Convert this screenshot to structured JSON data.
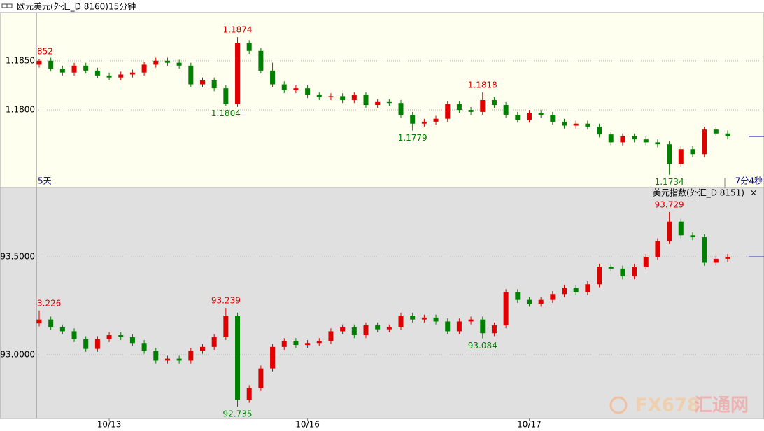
{
  "chart_data": [
    {
      "type": "candlestick",
      "title": "欧元美元(外汇_D 8160)15分钟",
      "series": {
        "open": [
          1.1846,
          1.185,
          1.1842,
          1.1838,
          1.1845,
          1.184,
          1.1835,
          1.1833,
          1.1836,
          1.1838,
          1.1846,
          1.185,
          1.1848,
          1.1845,
          1.1826,
          1.183,
          1.1822,
          1.1806,
          1.1868,
          1.186,
          1.184,
          1.1826,
          1.182,
          1.1822,
          1.1815,
          1.1813,
          1.1814,
          1.181,
          1.1815,
          1.1805,
          1.1808,
          1.1807,
          1.1795,
          1.1786,
          1.1788,
          1.1791,
          1.1806,
          1.18,
          1.1798,
          1.181,
          1.1805,
          1.1795,
          1.179,
          1.1797,
          1.1795,
          1.1788,
          1.1784,
          1.1786,
          1.1783,
          1.1775,
          1.1767,
          1.1773,
          1.177,
          1.1767,
          1.1765,
          1.1745,
          1.176,
          1.1755,
          1.178,
          1.1776
        ],
        "high": [
          1.1852,
          1.1853,
          1.1845,
          1.1848,
          1.1848,
          1.1843,
          1.1838,
          1.1839,
          1.1841,
          1.1849,
          1.1853,
          1.1853,
          1.1851,
          1.1848,
          1.1833,
          1.1833,
          1.1825,
          1.1874,
          1.1871,
          1.1863,
          1.1848,
          1.1829,
          1.1825,
          1.1825,
          1.1818,
          1.1817,
          1.1817,
          1.1818,
          1.1818,
          1.1811,
          1.1811,
          1.181,
          1.1798,
          1.1791,
          1.1794,
          1.1809,
          1.1809,
          1.1803,
          1.1818,
          1.1813,
          1.1808,
          1.1798,
          1.18,
          1.18,
          1.1798,
          1.1791,
          1.1789,
          1.1789,
          1.1786,
          1.1778,
          1.1776,
          1.1776,
          1.1773,
          1.177,
          1.1768,
          1.1763,
          1.1763,
          1.1783,
          1.1783,
          1.1779
        ],
        "low": [
          1.1843,
          1.1839,
          1.1835,
          1.1835,
          1.1837,
          1.1832,
          1.183,
          1.183,
          1.1833,
          1.1835,
          1.1843,
          1.1845,
          1.1842,
          1.1823,
          1.1823,
          1.1819,
          1.1804,
          1.1803,
          1.1857,
          1.1837,
          1.1823,
          1.1817,
          1.1817,
          1.1812,
          1.181,
          1.181,
          1.1807,
          1.1807,
          1.1802,
          1.1802,
          1.1804,
          1.1792,
          1.1779,
          1.1783,
          1.1785,
          1.1788,
          1.1797,
          1.1795,
          1.1795,
          1.1802,
          1.1792,
          1.1787,
          1.1787,
          1.1792,
          1.1785,
          1.1781,
          1.1781,
          1.178,
          1.1772,
          1.1764,
          1.1764,
          1.1767,
          1.1764,
          1.1762,
          1.1734,
          1.1742,
          1.1752,
          1.1752,
          1.1773,
          1.177
        ],
        "close": [
          1.185,
          1.1842,
          1.1838,
          1.1845,
          1.184,
          1.1835,
          1.1833,
          1.1836,
          1.1838,
          1.1846,
          1.185,
          1.1848,
          1.1845,
          1.1826,
          1.183,
          1.1822,
          1.1806,
          1.1868,
          1.186,
          1.184,
          1.1826,
          1.182,
          1.1822,
          1.1815,
          1.1813,
          1.1814,
          1.181,
          1.1815,
          1.1805,
          1.1808,
          1.1807,
          1.1795,
          1.1786,
          1.1788,
          1.1791,
          1.1806,
          1.18,
          1.1798,
          1.181,
          1.1805,
          1.1795,
          1.179,
          1.1797,
          1.1795,
          1.1788,
          1.1784,
          1.1786,
          1.1783,
          1.1775,
          1.1767,
          1.1773,
          1.177,
          1.1767,
          1.1765,
          1.1745,
          1.176,
          1.1755,
          1.178,
          1.1776,
          1.1773
        ]
      },
      "up_color": "#e00000",
      "down_color": "#008000",
      "background": "#ffffef",
      "ylim": [
        1.1721,
        1.1899
      ],
      "yticks": [
        {
          "value": 1.18,
          "label": "1.1800"
        },
        {
          "value": 1.185,
          "label": "1.1850"
        }
      ],
      "grid": true,
      "annotations": [
        {
          "text": "852",
          "index": 0,
          "side": "high"
        },
        {
          "text": "1.1874",
          "index": 17,
          "side": "high"
        },
        {
          "text": "1.1804",
          "index": 16,
          "side": "low"
        },
        {
          "text": "1.1779",
          "index": 32,
          "side": "low"
        },
        {
          "text": "1.1818",
          "index": 38,
          "side": "high"
        },
        {
          "text": "1.1734",
          "index": 54,
          "side": "low"
        }
      ],
      "period_label": "5天",
      "countdown": "7分4秒"
    },
    {
      "type": "candlestick",
      "title": "美元指数(外汇_D 8151)",
      "categories": [
        null,
        null,
        null,
        null,
        null,
        null,
        "10/13",
        null,
        null,
        null,
        null,
        null,
        null,
        null,
        null,
        null,
        null,
        null,
        null,
        null,
        null,
        null,
        null,
        "10/16",
        null,
        null,
        null,
        null,
        null,
        null,
        null,
        null,
        null,
        null,
        null,
        null,
        null,
        null,
        null,
        null,
        null,
        null,
        "10/17",
        null,
        null,
        null,
        null,
        null,
        null,
        null,
        null,
        null,
        null,
        null,
        null,
        null,
        null,
        null,
        null,
        null
      ],
      "series": {
        "open": [
          93.16,
          93.18,
          93.14,
          93.12,
          93.08,
          93.03,
          93.08,
          93.1,
          93.09,
          93.06,
          93.02,
          92.97,
          92.98,
          92.97,
          93.02,
          93.04,
          93.09,
          93.2,
          92.77,
          92.83,
          92.93,
          93.04,
          93.07,
          93.05,
          93.06,
          93.07,
          93.12,
          93.14,
          93.1,
          93.15,
          93.13,
          93.14,
          93.2,
          93.18,
          93.19,
          93.17,
          93.12,
          93.17,
          93.18,
          93.11,
          93.15,
          93.32,
          93.28,
          93.26,
          93.28,
          93.31,
          93.34,
          93.32,
          93.36,
          93.45,
          93.44,
          93.4,
          93.45,
          93.5,
          93.58,
          93.68,
          93.61,
          93.6,
          93.47,
          93.49
        ],
        "high": [
          93.226,
          93.195,
          93.155,
          93.135,
          93.095,
          93.095,
          93.115,
          93.115,
          93.105,
          93.075,
          93.035,
          92.995,
          92.995,
          93.035,
          93.055,
          93.105,
          93.239,
          93.215,
          92.845,
          92.945,
          93.055,
          93.085,
          93.085,
          93.075,
          93.085,
          93.135,
          93.155,
          93.155,
          93.165,
          93.165,
          93.155,
          93.215,
          93.215,
          93.205,
          93.205,
          93.185,
          93.185,
          93.195,
          93.195,
          93.165,
          93.335,
          93.335,
          93.295,
          93.295,
          93.325,
          93.355,
          93.355,
          93.375,
          93.465,
          93.465,
          93.455,
          93.465,
          93.515,
          93.595,
          93.729,
          93.695,
          93.625,
          93.615,
          93.505,
          93.515
        ],
        "low": [
          93.145,
          93.125,
          93.105,
          93.065,
          93.015,
          93.015,
          93.065,
          93.075,
          93.045,
          93.005,
          92.955,
          92.955,
          92.955,
          92.955,
          93.005,
          93.025,
          93.075,
          92.735,
          92.755,
          92.815,
          92.915,
          93.025,
          93.035,
          93.035,
          93.045,
          93.055,
          93.105,
          93.085,
          93.085,
          93.115,
          93.115,
          93.125,
          93.165,
          93.165,
          93.155,
          93.105,
          93.105,
          93.155,
          93.084,
          93.095,
          93.135,
          93.265,
          93.245,
          93.245,
          93.265,
          93.295,
          93.305,
          93.305,
          93.345,
          93.425,
          93.385,
          93.385,
          93.435,
          93.485,
          93.565,
          93.595,
          93.585,
          93.455,
          93.455,
          93.475
        ],
        "close": [
          93.18,
          93.14,
          93.12,
          93.08,
          93.03,
          93.08,
          93.1,
          93.09,
          93.06,
          93.02,
          92.97,
          92.98,
          92.97,
          93.02,
          93.04,
          93.09,
          93.2,
          92.77,
          92.83,
          92.93,
          93.04,
          93.07,
          93.05,
          93.06,
          93.07,
          93.12,
          93.14,
          93.1,
          93.15,
          93.13,
          93.14,
          93.2,
          93.18,
          93.19,
          93.17,
          93.12,
          93.17,
          93.18,
          93.11,
          93.15,
          93.32,
          93.28,
          93.26,
          93.28,
          93.31,
          93.34,
          93.32,
          93.36,
          93.45,
          93.44,
          93.4,
          93.45,
          93.5,
          93.58,
          93.68,
          93.61,
          93.6,
          93.47,
          93.49,
          93.5
        ]
      },
      "up_color": "#e00000",
      "down_color": "#008000",
      "background": "#e0e0e0",
      "ylim": [
        92.675,
        93.854
      ],
      "yticks": [
        {
          "value": 93,
          "label": "93.0000"
        },
        {
          "value": 93.5,
          "label": "93.5000"
        }
      ],
      "grid": true,
      "annotations": [
        {
          "text": "3.226",
          "index": 0,
          "side": "high"
        },
        {
          "text": "93.239",
          "index": 16,
          "side": "high"
        },
        {
          "text": "92.735",
          "index": 17,
          "side": "low"
        },
        {
          "text": "93.084",
          "index": 38,
          "side": "low"
        },
        {
          "text": "93.729",
          "index": 54,
          "side": "high"
        }
      ],
      "close_symbol": "×"
    }
  ],
  "watermark": [
    "FX678",
    "汇通网"
  ]
}
